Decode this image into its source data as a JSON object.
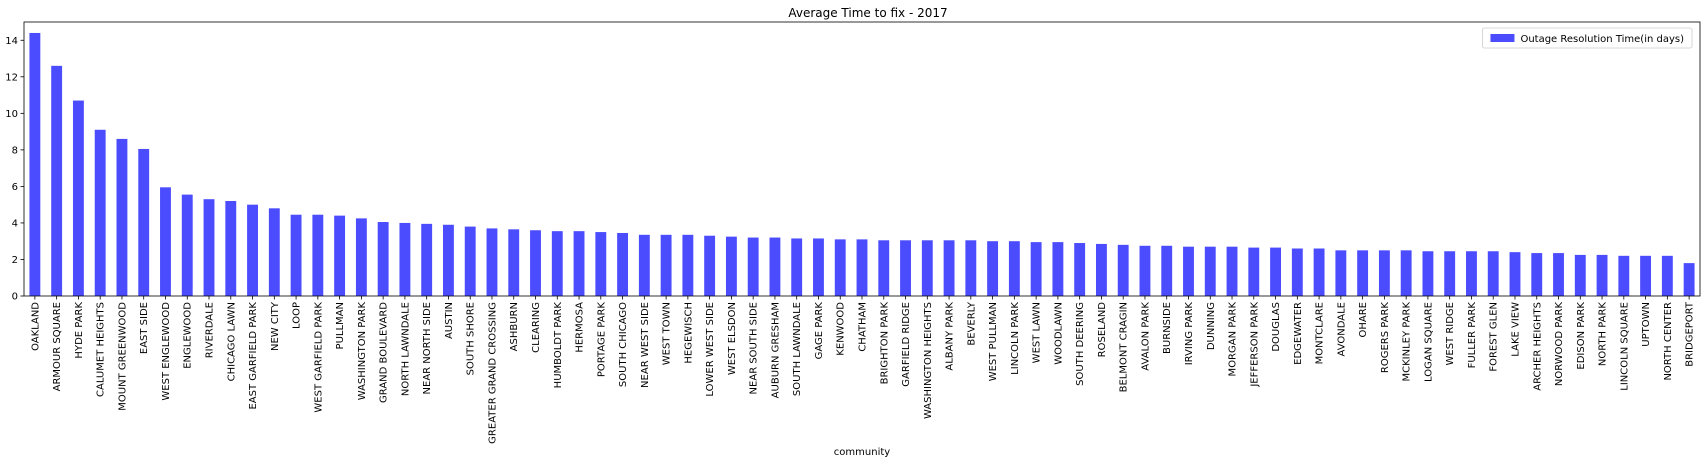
{
  "chart_data": {
    "type": "bar",
    "title": "Average Time to fix - 2017",
    "xlabel": "community",
    "ylabel": "",
    "ylim": [
      0,
      15
    ],
    "yticks": [
      0,
      2,
      4,
      6,
      8,
      10,
      12,
      14
    ],
    "grid": false,
    "legend": {
      "position": "top-right",
      "entries": [
        "Outage Resolution Time(in days)"
      ]
    },
    "bar_color": "#0000ff",
    "bar_opacity": 0.7,
    "categories": [
      "OAKLAND",
      "ARMOUR SQUARE",
      "HYDE PARK",
      "CALUMET HEIGHTS",
      "MOUNT GREENWOOD",
      "EAST SIDE",
      "WEST ENGLEWOOD",
      "ENGLEWOOD",
      "RIVERDALE",
      "CHICAGO LAWN",
      "EAST GARFIELD PARK",
      "NEW CITY",
      "LOOP",
      "WEST GARFIELD PARK",
      "PULLMAN",
      "WASHINGTON PARK",
      "GRAND BOULEVARD",
      "NORTH LAWNDALE",
      "NEAR NORTH SIDE",
      "AUSTIN",
      "SOUTH SHORE",
      "GREATER GRAND CROSSING",
      "ASHBURN",
      "CLEARING",
      "HUMBOLDT PARK",
      "HERMOSA",
      "PORTAGE PARK",
      "SOUTH CHICAGO",
      "NEAR WEST SIDE",
      "WEST TOWN",
      "HEGEWISCH",
      "LOWER WEST SIDE",
      "WEST ELSDON",
      "NEAR SOUTH SIDE",
      "AUBURN GRESHAM",
      "SOUTH LAWNDALE",
      "GAGE PARK",
      "KENWOOD",
      "CHATHAM",
      "BRIGHTON PARK",
      "GARFIELD RIDGE",
      "WASHINGTON HEIGHTS",
      "ALBANY PARK",
      "BEVERLY",
      "WEST PULLMAN",
      "LINCOLN PARK",
      "WEST LAWN",
      "WOODLAWN",
      "SOUTH DEERING",
      "ROSELAND",
      "BELMONT CRAGIN",
      "AVALON PARK",
      "BURNSIDE",
      "IRVING PARK",
      "DUNNING",
      "MORGAN PARK",
      "JEFFERSON PARK",
      "DOUGLAS",
      "EDGEWATER",
      "MONTCLARE",
      "AVONDALE",
      "OHARE",
      "ROGERS PARK",
      "MCKINLEY PARK",
      "LOGAN SQUARE",
      "WEST RIDGE",
      "FULLER PARK",
      "FOREST GLEN",
      "LAKE VIEW",
      "ARCHER HEIGHTS",
      "NORWOOD PARK",
      "EDISON PARK",
      "NORTH PARK",
      "LINCOLN SQUARE",
      "UPTOWN",
      "NORTH CENTER",
      "BRIDGEPORT"
    ],
    "values": [
      14.4,
      12.6,
      10.7,
      9.1,
      8.6,
      8.05,
      5.95,
      5.55,
      5.3,
      5.2,
      5.0,
      4.8,
      4.45,
      4.45,
      4.4,
      4.25,
      4.05,
      4.0,
      3.95,
      3.9,
      3.8,
      3.7,
      3.65,
      3.6,
      3.55,
      3.55,
      3.5,
      3.45,
      3.35,
      3.35,
      3.35,
      3.3,
      3.25,
      3.2,
      3.2,
      3.15,
      3.15,
      3.1,
      3.1,
      3.05,
      3.05,
      3.05,
      3.05,
      3.05,
      3.0,
      3.0,
      2.95,
      2.95,
      2.9,
      2.85,
      2.8,
      2.75,
      2.75,
      2.7,
      2.7,
      2.7,
      2.65,
      2.65,
      2.6,
      2.6,
      2.5,
      2.5,
      2.5,
      2.5,
      2.45,
      2.45,
      2.45,
      2.45,
      2.4,
      2.35,
      2.35,
      2.25,
      2.25,
      2.2,
      2.2,
      2.2,
      1.8
    ]
  }
}
